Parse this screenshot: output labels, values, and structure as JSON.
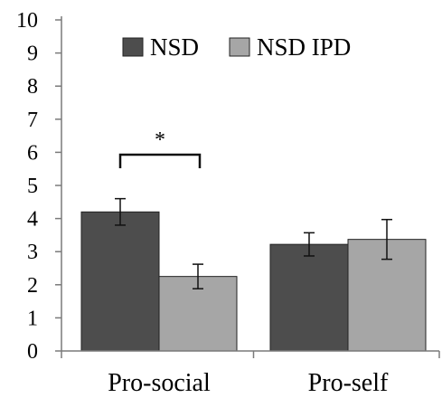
{
  "chart_data": {
    "type": "bar",
    "categories": [
      "Pro-social",
      "Pro-self"
    ],
    "series": [
      {
        "name": "NSD",
        "values": [
          4.2,
          3.22
        ],
        "error": [
          0.4,
          0.35
        ],
        "color": "#4d4d4d"
      },
      {
        "name": "NSD IPD",
        "values": [
          2.25,
          3.37
        ],
        "error": [
          0.37,
          0.6
        ],
        "color": "#a6a6a6"
      }
    ],
    "y_ticks": [
      "0",
      "1",
      "2",
      "3",
      "4",
      "5",
      "6",
      "7",
      "8",
      "9",
      "10"
    ],
    "ylim": [
      0,
      10
    ],
    "title": "",
    "xlabel": "",
    "ylabel": "",
    "legend_position": "top-center",
    "grid": false,
    "significance": {
      "label": "*",
      "category": "Pro-social"
    }
  }
}
